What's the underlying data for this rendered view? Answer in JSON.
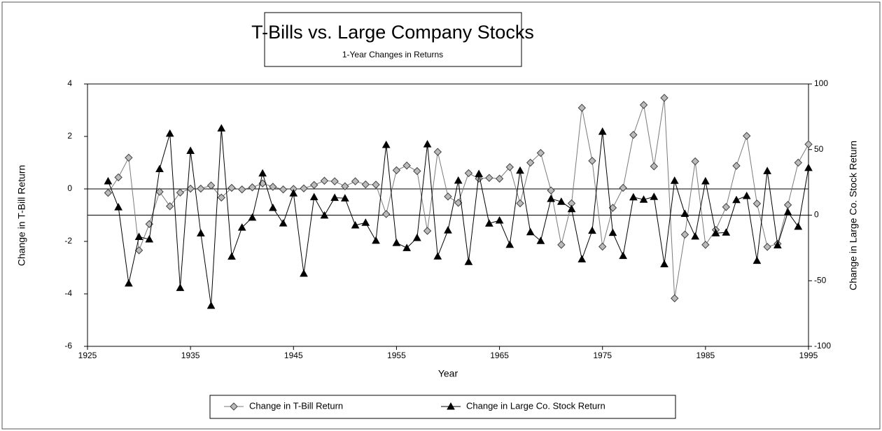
{
  "chart_data": {
    "type": "line",
    "title": "T-Bills vs. Large Company Stocks",
    "subtitle": "1-Year Changes in Returns",
    "x_label": "Year",
    "y_label": "Change in T-Bill Return",
    "y2_label": "Change in Large Co. Stock Return",
    "xlim": [
      1925,
      1995
    ],
    "xticks": [
      1925,
      1935,
      1945,
      1955,
      1965,
      1975,
      1985,
      1995
    ],
    "ylim": [
      -6,
      4
    ],
    "yticks": [
      -6,
      -4,
      -2,
      0,
      2,
      4
    ],
    "y2lim": [
      -100,
      100
    ],
    "y2ticks": [
      -100,
      -50,
      0,
      50,
      100
    ],
    "grid": false,
    "legend": "bottom",
    "x": [
      1927,
      1928,
      1929,
      1930,
      1931,
      1932,
      1933,
      1934,
      1935,
      1936,
      1937,
      1938,
      1939,
      1940,
      1941,
      1942,
      1943,
      1944,
      1945,
      1946,
      1947,
      1948,
      1949,
      1950,
      1951,
      1952,
      1953,
      1954,
      1955,
      1956,
      1957,
      1958,
      1959,
      1960,
      1961,
      1962,
      1963,
      1964,
      1965,
      1966,
      1967,
      1968,
      1969,
      1970,
      1971,
      1972,
      1973,
      1974,
      1975,
      1976,
      1977,
      1978,
      1979,
      1980,
      1981,
      1982,
      1983,
      1984,
      1985,
      1986,
      1987,
      1988,
      1989,
      1990,
      1991,
      1992,
      1993,
      1994,
      1995
    ],
    "series": [
      {
        "name": "Change in T-Bill Return",
        "color": "#7a7a7a",
        "marker": "diamond",
        "values": [
          -0.15,
          0.44,
          1.19,
          -2.34,
          -1.34,
          -0.11,
          -0.66,
          -0.14,
          0.01,
          0.01,
          0.13,
          -0.33,
          0.04,
          -0.02,
          0.06,
          0.21,
          0.08,
          -0.02,
          0,
          0.02,
          0.15,
          0.31,
          0.29,
          0.1,
          0.29,
          0.17,
          0.16,
          -0.96,
          0.71,
          0.89,
          0.68,
          -1.6,
          1.41,
          -0.29,
          -0.53,
          0.6,
          0.39,
          0.42,
          0.39,
          0.83,
          -0.55,
          1,
          1.37,
          -0.06,
          -2.13,
          -0.55,
          3.09,
          1.07,
          -2.2,
          -0.72,
          0.04,
          2.06,
          3.2,
          0.86,
          3.47,
          -4.17,
          -1.74,
          1.05,
          -2.13,
          -1.56,
          -0.69,
          0.88,
          2.02,
          -0.56,
          -2.21,
          -2.09,
          -0.61,
          1,
          1.7
        ]
      },
      {
        "name": "Change in Large Co. Stock Return",
        "color": "#000000",
        "marker": "triangle",
        "axis": "y2",
        "values": [
          25.9,
          6.1,
          -52,
          -16.5,
          -18.4,
          35.2,
          62.2,
          -55.4,
          49.1,
          -13.8,
          -69,
          66.2,
          -31.5,
          -9.4,
          -1.8,
          31.9,
          5.6,
          -6.2,
          16.7,
          -44.5,
          13.8,
          -0.2,
          13.3,
          12.9,
          -7.7,
          -5.7,
          -19.4,
          53.6,
          -21.1,
          -25,
          -17.3,
          54.1,
          -31.4,
          -11.5,
          26.4,
          -35.6,
          31.5,
          -6.3,
          -4,
          -22.5,
          34,
          -12.9,
          -19.6,
          12.5,
          10.3,
          4.7,
          -33.6,
          -11.8,
          63.7,
          -13.4,
          -31,
          13.7,
          11.9,
          14,
          -37.3,
          26.3,
          1.1,
          -16.2,
          25.9,
          -13.7,
          -13.2,
          11.6,
          14.7,
          -34.7,
          33.7,
          -22.9,
          2.3,
          -8.7,
          36.1
        ]
      }
    ]
  }
}
